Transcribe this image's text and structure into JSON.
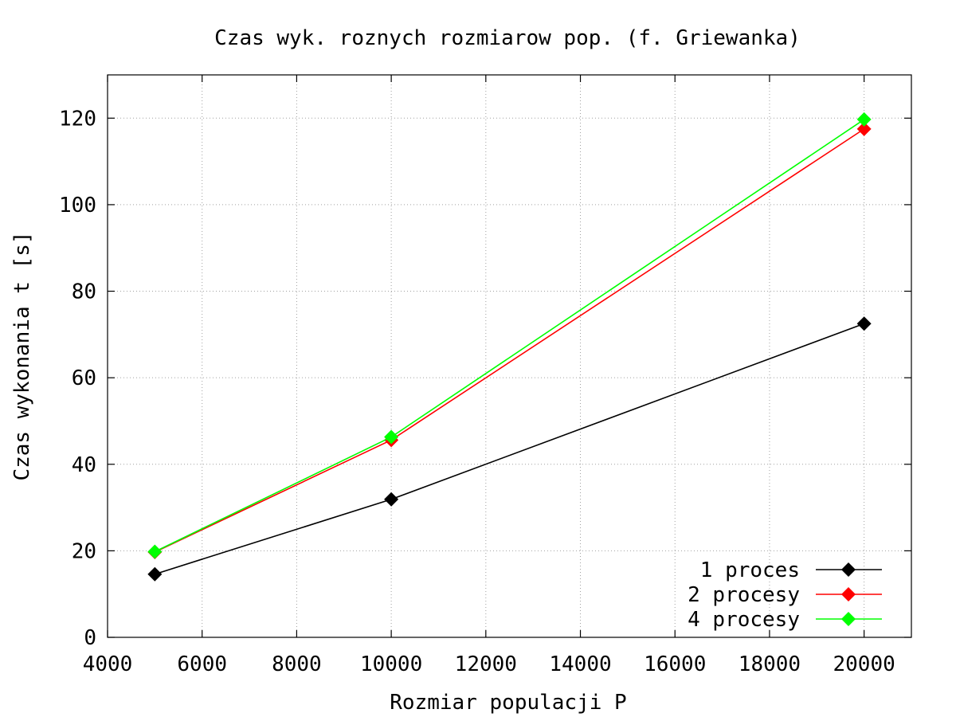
{
  "chart_data": {
    "type": "line",
    "title": "Czas wyk. roznych rozmiarow pop. (f. Griewanka)",
    "xlabel": "Rozmiar populacji P",
    "ylabel": "Czas wykonania t [s]",
    "xlim": [
      4000,
      21000
    ],
    "ylim": [
      0,
      130
    ],
    "xticks": [
      4000,
      6000,
      8000,
      10000,
      12000,
      14000,
      16000,
      18000,
      20000
    ],
    "yticks": [
      0,
      20,
      40,
      60,
      80,
      100,
      120
    ],
    "grid": true,
    "legend_position": "bottom-right",
    "x": [
      5000,
      10000,
      20000
    ],
    "series": [
      {
        "name": "1 proces",
        "color": "#000000",
        "values": [
          14.6,
          31.9,
          72.5
        ]
      },
      {
        "name": "2 procesy",
        "color": "#ff0000",
        "values": [
          19.7,
          45.6,
          117.5
        ]
      },
      {
        "name": "4 procesy",
        "color": "#00ff00",
        "values": [
          19.8,
          46.3,
          119.7
        ]
      }
    ]
  }
}
